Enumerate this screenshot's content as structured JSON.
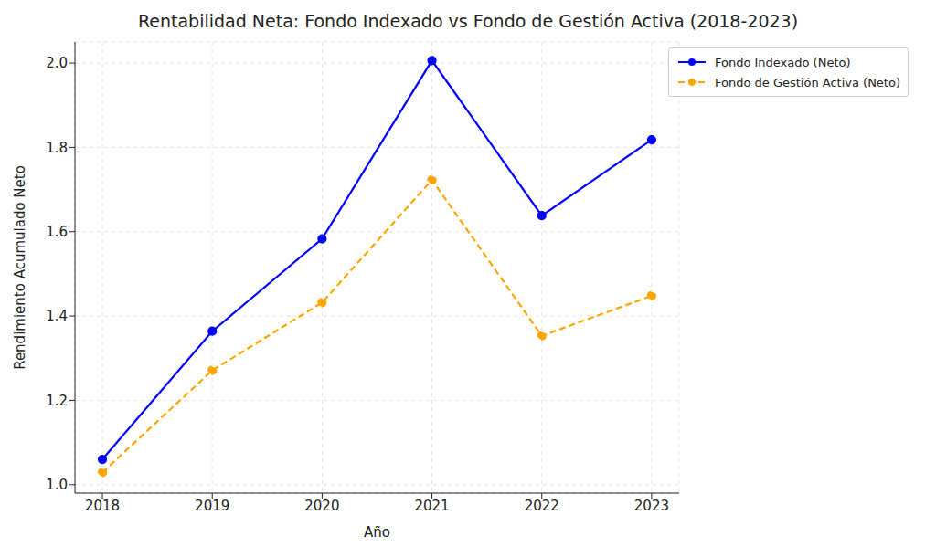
{
  "chart_data": {
    "type": "line",
    "title": "Rentabilidad Neta: Fondo Indexado vs Fondo de Gestión Activa (2018-2023)",
    "x_label": "Año",
    "y_label": "Rendimiento Acumulado Neto",
    "x": [
      2018,
      2019,
      2020,
      2021,
      2022,
      2023
    ],
    "series": [
      {
        "name": "Fondo Indexado (Neto)",
        "color": "#0000ff",
        "marker": "o",
        "line_style": "solid",
        "values": [
          1.06,
          1.364,
          1.583,
          2.006,
          1.638,
          1.818
        ]
      },
      {
        "name": "Fondo de Gestión Activa (Neto)",
        "color": "#ffa500",
        "marker": "o",
        "line_style": "dashed",
        "values": [
          1.029,
          1.271,
          1.432,
          1.723,
          1.353,
          1.448
        ]
      }
    ],
    "xlim": [
      2017.75,
      2023.25
    ],
    "xticks": [
      2018,
      2019,
      2020,
      2021,
      2022,
      2023
    ],
    "ylim": [
      0.98,
      2.05
    ],
    "yticks": [
      {
        "value": 1,
        "label": "1.0"
      },
      1.2,
      1.4,
      1.6,
      1.8,
      {
        "value": 2,
        "label": "2.0"
      }
    ],
    "grid": true,
    "legend": "upper right"
  }
}
